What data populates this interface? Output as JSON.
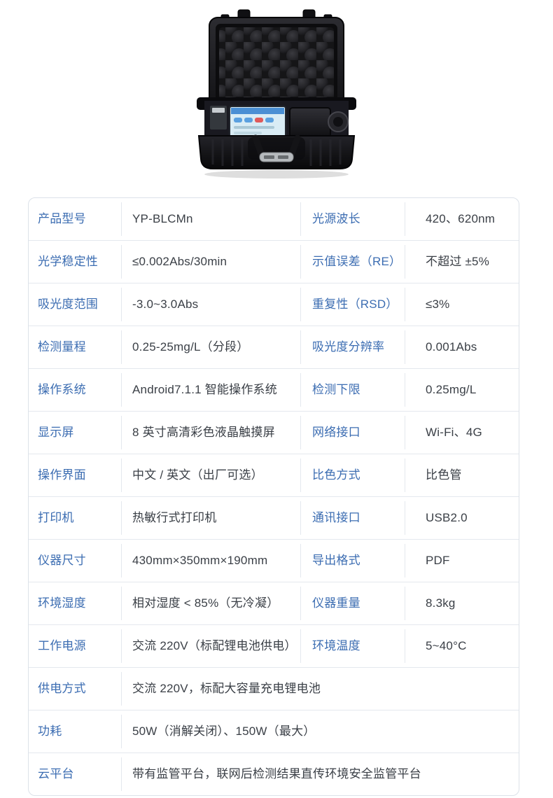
{
  "colors": {
    "page_bg": "#ffffff",
    "label_blue": "#3c6db2",
    "value_dark": "#3a3f46",
    "table_border": "#dce2e9",
    "row_divider": "#e4e8ee",
    "screen_header_blue": "#4a8fd4",
    "screen_body": "#d9ecf5",
    "case_black": "#131316",
    "handle_grip_gray": "#b6babd"
  },
  "hero": {
    "name": "portable-analyzer-in-open-black-hard-case-photo"
  },
  "table": {
    "rows": [
      {
        "c1": "产品型号",
        "c2": "YP-BLCMn",
        "c3": "光源波长",
        "c4": "420、620nm"
      },
      {
        "c1": "光学稳定性",
        "c2": "≤0.002Abs/30min",
        "c3": "示值误差（RE）",
        "c4": "不超过 ±5%"
      },
      {
        "c1": "吸光度范围",
        "c2": "-3.0~3.0Abs",
        "c3": "重复性（RSD）",
        "c4": "≤3%"
      },
      {
        "c1": "检测量程",
        "c2": "0.25-25mg/L（分段）",
        "c3": "吸光度分辨率",
        "c4": "0.001Abs"
      },
      {
        "c1": "操作系统",
        "c2": "Android7.1.1 智能操作系统",
        "c3": "检测下限",
        "c4": "0.25mg/L"
      },
      {
        "c1": "显示屏",
        "c2": "8 英寸高清彩色液晶触摸屏",
        "c3": "网络接口",
        "c4": "Wi-Fi、4G"
      },
      {
        "c1": "操作界面",
        "c2": "中文 / 英文（出厂可选）",
        "c3": "比色方式",
        "c4": "比色管"
      },
      {
        "c1": "打印机",
        "c2": "热敏行式打印机",
        "c3": "通讯接口",
        "c4": "USB2.0"
      },
      {
        "c1": "仪器尺寸",
        "c2": "430mm×350mm×190mm",
        "c3": "导出格式",
        "c4": "PDF"
      },
      {
        "c1": "环境湿度",
        "c2": "相对湿度 < 85%（无冷凝）",
        "c3": "仪器重量",
        "c4": "8.3kg"
      },
      {
        "c1": "工作电源",
        "c2": "交流 220V（标配锂电池供电）",
        "c3": "环境温度",
        "c4": "5~40°C"
      },
      {
        "c1": "供电方式",
        "c2": "交流 220V，标配大容量充电锂电池"
      },
      {
        "c1": "功耗",
        "c2": "50W（消解关闭）、150W（最大）"
      },
      {
        "c1": "云平台",
        "c2": "带有监管平台，联网后检测结果直传环境安全监管平台"
      }
    ]
  }
}
